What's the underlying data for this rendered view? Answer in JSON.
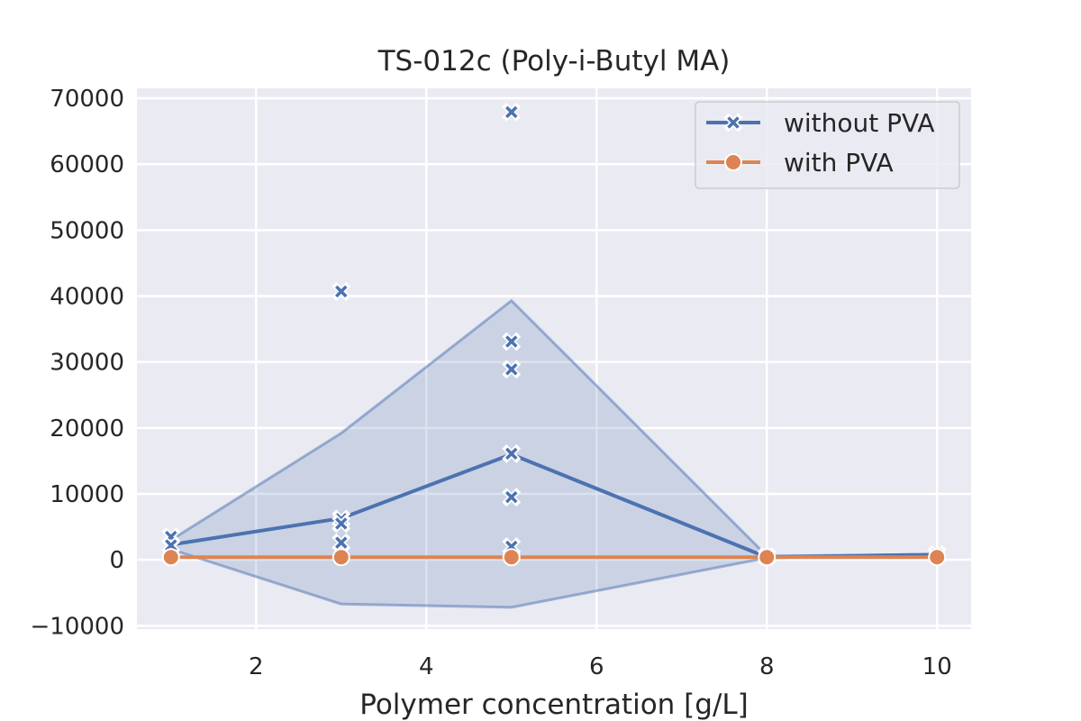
{
  "chart_data": {
    "type": "line",
    "title": "TS-012c (Poly-i-Butyl MA)",
    "xlabel": "Polymer concentration [g/L]",
    "ylabel": "",
    "xlim": [
      0.6,
      10.4
    ],
    "ylim": [
      -10500,
      71500
    ],
    "xticks": [
      2,
      4,
      6,
      8,
      10
    ],
    "yticks": [
      -10000,
      0,
      10000,
      20000,
      30000,
      40000,
      50000,
      60000,
      70000
    ],
    "ytick_labels": [
      "−10000",
      "0",
      "10000",
      "20000",
      "30000",
      "40000",
      "50000",
      "60000",
      "70000"
    ],
    "grid": true,
    "legend_position": "top-right",
    "series": [
      {
        "name": "without PVA",
        "color": "#4c72b0",
        "marker": "x",
        "x": [
          1,
          3,
          5,
          8,
          10
        ],
        "mean": [
          2300,
          6300,
          16000,
          400,
          800
        ],
        "ci_lower": [
          1600,
          -6700,
          -7200,
          300,
          800
        ],
        "ci_upper": [
          3000,
          19200,
          39300,
          600,
          800
        ],
        "points": [
          [
            1,
            3500
          ],
          [
            1,
            2200
          ],
          [
            3,
            40700
          ],
          [
            3,
            6200
          ],
          [
            3,
            5500
          ],
          [
            3,
            2600
          ],
          [
            5,
            67900
          ],
          [
            5,
            33100
          ],
          [
            5,
            28900
          ],
          [
            5,
            16100
          ],
          [
            5,
            9500
          ],
          [
            5,
            2000
          ],
          [
            8,
            500
          ],
          [
            10,
            800
          ]
        ]
      },
      {
        "name": "with PVA",
        "color": "#dd8452",
        "marker": "o",
        "x": [
          1,
          3,
          5,
          8,
          10
        ],
        "mean": [
          400,
          400,
          400,
          400,
          400
        ],
        "points": [
          [
            1,
            400
          ],
          [
            3,
            400
          ],
          [
            5,
            400
          ],
          [
            8,
            400
          ],
          [
            10,
            400
          ]
        ]
      }
    ]
  }
}
